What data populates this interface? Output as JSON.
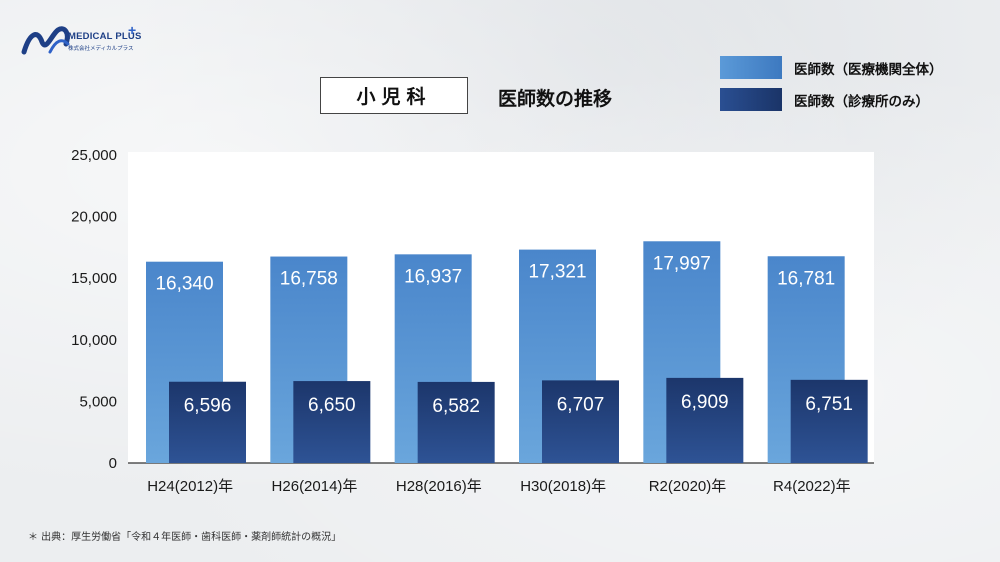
{
  "logo": {
    "name": "MEDICAL PLUS",
    "plus": "+",
    "subtitle": "株式会社メディカルプラス"
  },
  "header": {
    "department": "小児科",
    "title": "医師数の推移"
  },
  "legend": [
    {
      "label": "医師数（医療機関全体）",
      "color": "#4b87cb"
    },
    {
      "label": "医師数（診療所のみ）",
      "color": "#1d3a72"
    }
  ],
  "source": "＊ 出典：厚生労働省「令和４年医師・歯科医師・薬剤師統計の概況」",
  "chart_data": {
    "type": "bar",
    "categories": [
      "H24(2012)年",
      "H26(2014)年",
      "H28(2016)年",
      "H30(2018)年",
      "R2(2020)年",
      "R4(2022)年"
    ],
    "series": [
      {
        "name": "医師数（医療機関全体）",
        "values": [
          16340,
          16758,
          16937,
          17321,
          17997,
          16781
        ],
        "color": "#4b87cb"
      },
      {
        "name": "医師数（診療所のみ）",
        "values": [
          6596,
          6650,
          6582,
          6707,
          6909,
          6751
        ],
        "color": "#1d3a72"
      }
    ],
    "value_labels": [
      [
        "16,340",
        "16,758",
        "16,937",
        "17,321",
        "17,997",
        "16,781"
      ],
      [
        "6,596",
        "6,650",
        "6,582",
        "6,707",
        "6,909",
        "6,751"
      ]
    ],
    "y_ticks": [
      "0",
      "5,000",
      "10,000",
      "15,000",
      "20,000",
      "25,000"
    ],
    "ylim": [
      0,
      25000
    ],
    "grid": false,
    "legend_position": "top-right"
  }
}
